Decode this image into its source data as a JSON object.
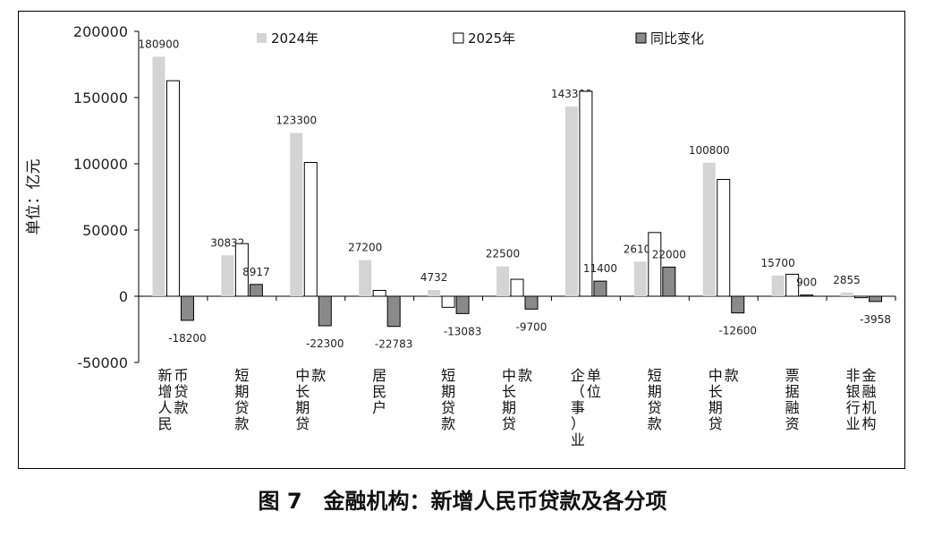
{
  "caption": "图 7　金融机构：新增人民币贷款及各分项",
  "chart_data": {
    "type": "bar",
    "ylabel": "单位：亿元",
    "ylim": [
      -50000,
      200000
    ],
    "yticks": [
      "-50000",
      "0",
      "50000",
      "100000",
      "150000",
      "200000"
    ],
    "categories": [
      [
        "新增人民",
        "币贷款"
      ],
      [
        "短期贷款"
      ],
      [
        "中长期贷",
        "款"
      ],
      [
        "居民户"
      ],
      [
        "短期贷款"
      ],
      [
        "中长期贷",
        "款"
      ],
      [
        "企（事）业",
        "单位"
      ],
      [
        "短期贷款"
      ],
      [
        "中长期贷",
        "款"
      ],
      [
        "票据融资"
      ],
      [
        "非银行业",
        "金融机构"
      ]
    ],
    "legend_position": "top",
    "series": [
      {
        "name": "2024年",
        "color": "#d4d4d4",
        "stroke": "#d4d4d4",
        "values": [
          180900,
          30832,
          123300,
          27200,
          4732,
          22500,
          143300,
          26100,
          100800,
          15700,
          2855
        ],
        "labels": [
          "180900",
          "30832",
          "123300",
          "27200",
          "4732",
          "22500",
          "143300",
          "26100",
          "100800",
          "15700",
          "2855"
        ]
      },
      {
        "name": "2025年",
        "color": "#ffffff",
        "stroke": "#000000",
        "values": [
          162700,
          39749,
          101000,
          4417,
          -8351,
          12800,
          154700,
          48100,
          88200,
          16600,
          -1103
        ],
        "labels": []
      },
      {
        "name": "同比变化",
        "color": "#8a8a8a",
        "stroke": "#000000",
        "values": [
          -18200,
          8917,
          -22300,
          -22783,
          -13083,
          -9700,
          11400,
          22000,
          -12600,
          900,
          -3958
        ],
        "labels": [
          "-18200",
          "8917",
          "-22300",
          "-22783",
          "-13083",
          "-9700",
          "11400",
          "22000",
          "-12600",
          "900",
          "-3958"
        ]
      }
    ]
  }
}
